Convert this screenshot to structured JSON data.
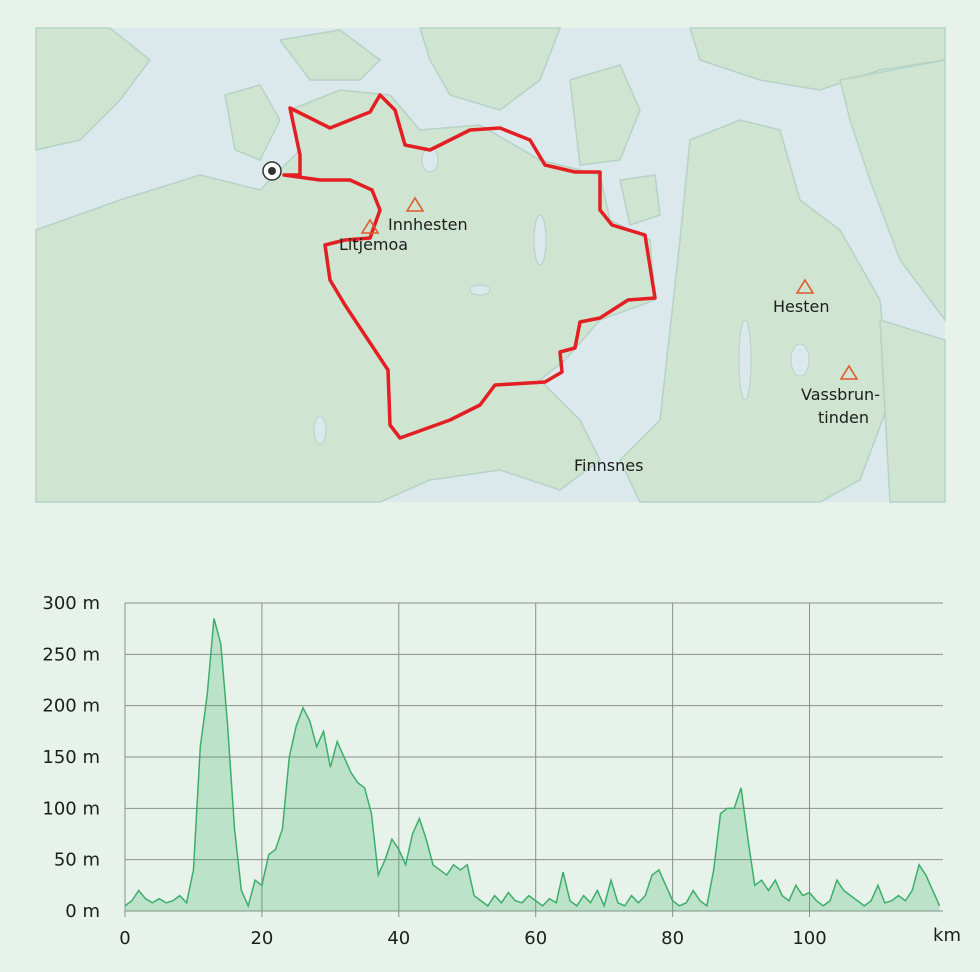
{
  "map": {
    "places": [
      {
        "label": [
          "Innhesten"
        ]
      },
      {
        "label": [
          "Litjemoa"
        ]
      },
      {
        "label": [
          "Hesten"
        ]
      },
      {
        "label": [
          "Vassbrun-",
          "tinden"
        ]
      },
      {
        "label": [
          "Finnsnes"
        ]
      }
    ]
  },
  "chart_data": {
    "type": "area",
    "color": "#3dae6a",
    "x": [
      0,
      1,
      2,
      3,
      4,
      5,
      6,
      7,
      8,
      9,
      10,
      11,
      12,
      13,
      14,
      15,
      16,
      17,
      18,
      19,
      20,
      21,
      22,
      23,
      24,
      25,
      26,
      27,
      28,
      29,
      30,
      31,
      32,
      33,
      34,
      35,
      36,
      37,
      38,
      39,
      40,
      41,
      42,
      43,
      44,
      45,
      46,
      47,
      48,
      49,
      50,
      51,
      52,
      53,
      54,
      55,
      56,
      57,
      58,
      59,
      60,
      61,
      62,
      63,
      64,
      65,
      66,
      67,
      68,
      69,
      70,
      71,
      72,
      73,
      74,
      75,
      76,
      77,
      78,
      79,
      80,
      81,
      82,
      83,
      84,
      85,
      86,
      87,
      88,
      89,
      90,
      91,
      92,
      93,
      94,
      95,
      96,
      97,
      98,
      99,
      100,
      101,
      102,
      103,
      104,
      105,
      106,
      107,
      108,
      109,
      110,
      111,
      112,
      113,
      114,
      115,
      116,
      117,
      118,
      119
    ],
    "values": [
      5,
      10,
      20,
      12,
      8,
      12,
      8,
      10,
      15,
      8,
      40,
      160,
      210,
      285,
      260,
      180,
      80,
      20,
      5,
      30,
      25,
      55,
      60,
      80,
      150,
      180,
      198,
      185,
      160,
      175,
      140,
      165,
      150,
      135,
      125,
      120,
      95,
      35,
      50,
      70,
      60,
      45,
      75,
      90,
      70,
      45,
      40,
      35,
      45,
      40,
      45,
      15,
      10,
      5,
      15,
      8,
      18,
      10,
      8,
      15,
      10,
      5,
      12,
      8,
      38,
      10,
      5,
      15,
      8,
      20,
      5,
      30,
      8,
      5,
      15,
      8,
      15,
      35,
      40,
      25,
      10,
      5,
      8,
      20,
      10,
      5,
      40,
      95,
      100,
      100,
      120,
      70,
      25,
      30,
      20,
      30,
      15,
      10,
      25,
      15,
      18,
      10,
      5,
      10,
      30,
      20,
      15,
      10,
      5,
      10,
      25,
      8,
      10,
      15,
      10,
      20,
      45,
      35,
      20,
      5
    ],
    "xlim": [
      0,
      119.5
    ],
    "ylim": [
      0,
      300
    ],
    "xticks": [
      0,
      20,
      40,
      60,
      80,
      100
    ],
    "x_unit": "km",
    "yticks": [
      {
        "value": 0,
        "label": "0 m"
      },
      {
        "value": 50,
        "label": "50 m"
      },
      {
        "value": 100,
        "label": "100 m"
      },
      {
        "value": 150,
        "label": "150 m"
      },
      {
        "value": 200,
        "label": "200 m"
      },
      {
        "value": 250,
        "label": "250 m"
      },
      {
        "value": 300,
        "label": "300 m"
      }
    ],
    "grid": true
  }
}
